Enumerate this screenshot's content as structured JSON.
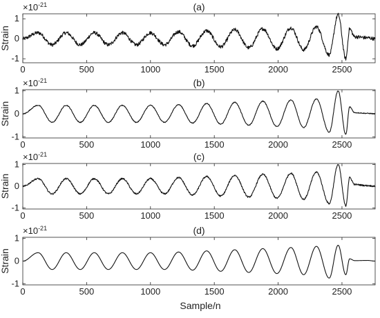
{
  "figure": {
    "xlabel": "Sample/n"
  },
  "chart_data": [
    {
      "type": "line",
      "title": "(a)",
      "ylabel": "Strain",
      "scale_base": "×10",
      "scale_exponent": "-21",
      "xlim": [
        0,
        2760
      ],
      "ylim": [
        -1.2,
        1.25
      ],
      "xticks": [
        0,
        500,
        1000,
        1500,
        2000,
        2500
      ],
      "yticks": [
        -1,
        0,
        1
      ],
      "noise": "high",
      "series": [
        {
          "x": [
            0,
            120,
            230,
            340,
            450,
            560,
            670,
            780,
            890,
            1000,
            1110,
            1220,
            1330,
            1440,
            1550,
            1660,
            1770,
            1880,
            1990,
            2100,
            2200,
            2300,
            2400,
            2470,
            2530,
            2560,
            2600,
            2700,
            2760
          ],
          "values": [
            0.0,
            0.3,
            -0.3,
            0.3,
            -0.3,
            0.3,
            -0.3,
            0.3,
            -0.3,
            0.3,
            -0.3,
            0.35,
            -0.35,
            0.4,
            -0.4,
            0.45,
            -0.45,
            0.5,
            -0.5,
            0.55,
            -0.55,
            0.6,
            -0.8,
            1.2,
            -1.0,
            0.5,
            0.1,
            0.05,
            0.0
          ]
        }
      ]
    },
    {
      "type": "line",
      "title": "(b)",
      "ylabel": "Strain",
      "scale_base": "×10",
      "scale_exponent": "-21",
      "xlim": [
        0,
        2760
      ],
      "ylim": [
        -1.05,
        1.05
      ],
      "xticks": [
        0,
        500,
        1000,
        1500,
        2000,
        2500
      ],
      "yticks": [
        -1,
        0,
        1
      ],
      "noise": "low",
      "series": [
        {
          "x": [
            0,
            120,
            230,
            340,
            450,
            560,
            670,
            780,
            890,
            1000,
            1110,
            1220,
            1330,
            1440,
            1550,
            1660,
            1770,
            1880,
            1990,
            2100,
            2200,
            2300,
            2400,
            2470,
            2530,
            2560,
            2600,
            2700,
            2760
          ],
          "values": [
            0.0,
            0.37,
            -0.37,
            0.37,
            -0.37,
            0.37,
            -0.37,
            0.37,
            -0.37,
            0.37,
            -0.37,
            0.4,
            -0.4,
            0.45,
            -0.45,
            0.5,
            -0.5,
            0.55,
            -0.55,
            0.6,
            -0.6,
            0.65,
            -0.8,
            1.0,
            -0.9,
            0.3,
            0.05,
            0.02,
            0.0
          ]
        }
      ]
    },
    {
      "type": "line",
      "title": "(c)",
      "ylabel": "Strain",
      "scale_base": "×10",
      "scale_exponent": "-21",
      "xlim": [
        0,
        2760
      ],
      "ylim": [
        -1.05,
        1.05
      ],
      "xticks": [
        0,
        500,
        1000,
        1500,
        2000,
        2500
      ],
      "yticks": [
        -1,
        0,
        1
      ],
      "noise": "medium",
      "series": [
        {
          "x": [
            0,
            120,
            230,
            340,
            450,
            560,
            670,
            780,
            890,
            1000,
            1110,
            1220,
            1330,
            1440,
            1550,
            1660,
            1770,
            1880,
            1990,
            2100,
            2200,
            2300,
            2400,
            2470,
            2530,
            2560,
            2600,
            2700,
            2760
          ],
          "values": [
            0.0,
            0.35,
            -0.35,
            0.35,
            -0.35,
            0.35,
            -0.35,
            0.35,
            -0.35,
            0.35,
            -0.35,
            0.4,
            -0.4,
            0.45,
            -0.45,
            0.5,
            -0.5,
            0.55,
            -0.55,
            0.6,
            -0.6,
            0.65,
            -0.8,
            1.0,
            -0.9,
            0.4,
            0.08,
            0.03,
            0.0
          ]
        }
      ]
    },
    {
      "type": "line",
      "title": "(d)",
      "ylabel": "Strain",
      "scale_base": "×10",
      "scale_exponent": "-21",
      "xlim": [
        0,
        2760
      ],
      "ylim": [
        -1.05,
        1.05
      ],
      "xticks": [
        0,
        500,
        1000,
        1500,
        2000,
        2500
      ],
      "yticks": [
        -1,
        0,
        1
      ],
      "noise": "none",
      "series": [
        {
          "x": [
            0,
            120,
            230,
            340,
            450,
            560,
            670,
            780,
            890,
            1000,
            1110,
            1220,
            1330,
            1440,
            1550,
            1660,
            1770,
            1880,
            1990,
            2100,
            2200,
            2300,
            2400,
            2470,
            2530,
            2560,
            2600,
            2700,
            2760
          ],
          "values": [
            0.0,
            0.37,
            -0.37,
            0.37,
            -0.37,
            0.37,
            -0.37,
            0.37,
            -0.37,
            0.37,
            -0.37,
            0.4,
            -0.4,
            0.45,
            -0.45,
            0.5,
            -0.5,
            0.55,
            -0.55,
            0.6,
            -0.6,
            0.65,
            -0.75,
            0.7,
            -0.6,
            0.1,
            0.02,
            0.03,
            0.0
          ]
        }
      ]
    }
  ]
}
